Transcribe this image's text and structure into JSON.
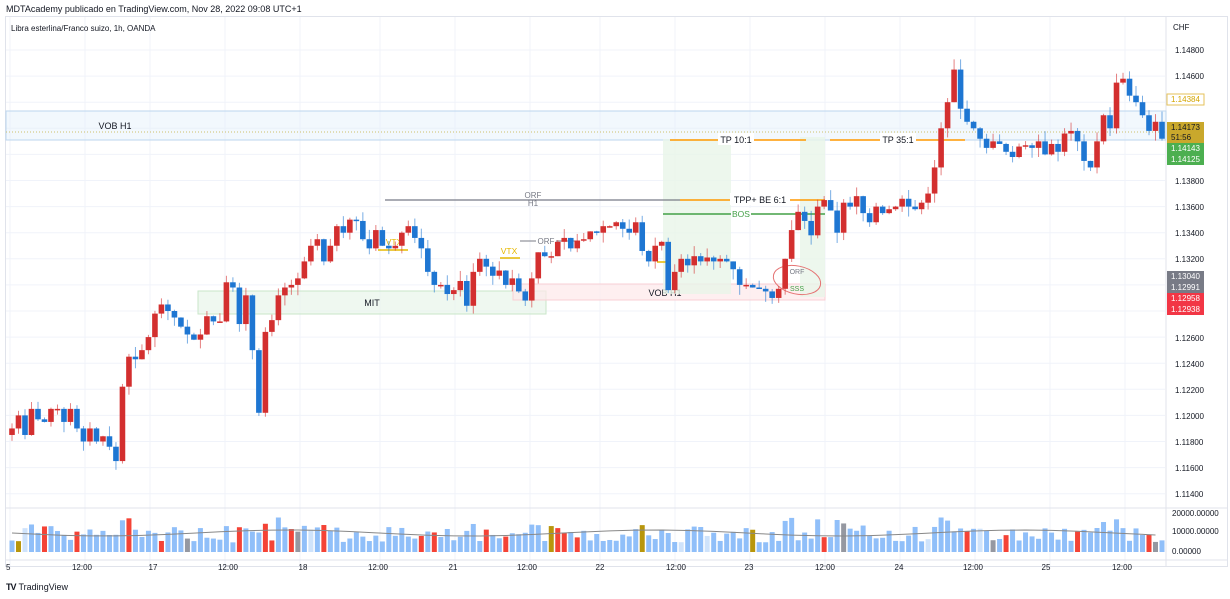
{
  "header": {
    "published": "MDTAcademy publicado en TradingView.com, Nov 28, 2022 09:08 UTC+1",
    "symbol": "Libra esterlina/Franco suizo, 1h, OANDA"
  },
  "brand": {
    "logo": "TV",
    "name": "TradingView"
  },
  "colors": {
    "up": "#d32f2f",
    "down": "#1e76d2",
    "vol_up": "#f44336",
    "vol_down": "#90bff9",
    "vol_light": "#cfe3fb",
    "vol_gold": "#b8960c",
    "vol_gray": "#9598a1",
    "orange": "#ff9800",
    "green": "#43a047",
    "gray": "#787b86",
    "gold": "#e6b800"
  },
  "price_axis": {
    "currency": "CHF",
    "ticks": [
      "1.14800",
      "1.14600",
      "1.13800",
      "1.13600",
      "1.13400",
      "1.13200",
      "1.12600",
      "1.12400",
      "1.12200",
      "1.12000",
      "1.11800",
      "1.11600",
      "1.11400"
    ],
    "tags": [
      {
        "label": "1.14384",
        "bg": "#ffffff",
        "fg": "#d4a500",
        "border": "#e6c25a"
      },
      {
        "label": "1.14173",
        "bg": "#c9a82c",
        "fg": "#131722"
      },
      {
        "label": "51:56",
        "bg": "#c9a82c",
        "fg": "#131722"
      },
      {
        "label": "1.14143",
        "bg": "#4caf50",
        "fg": "#ffffff"
      },
      {
        "label": "1.14125",
        "bg": "#4caf50",
        "fg": "#ffffff"
      },
      {
        "label": "1.13040",
        "bg": "#787b86",
        "fg": "#ffffff"
      },
      {
        "label": "1.12991",
        "bg": "#787b86",
        "fg": "#ffffff"
      },
      {
        "label": "1.12958",
        "bg": "#f23645",
        "fg": "#ffffff"
      },
      {
        "label": "1.12938",
        "bg": "#f23645",
        "fg": "#ffffff"
      }
    ]
  },
  "volume_axis": {
    "ticks": [
      "20000.00000",
      "10000.00000",
      "0.00000"
    ]
  },
  "time_axis": {
    "ticks": [
      "5",
      "12:00",
      "17",
      "12:00",
      "18",
      "12:00",
      "21",
      "12:00",
      "22",
      "12:00",
      "23",
      "12:00",
      "24",
      "12:00",
      "25",
      "12:00"
    ]
  },
  "annotations": {
    "vob_top": "VOB H1",
    "vob_bottom": "VOB H1",
    "mit": "MIT",
    "tp10": "TP 10:1",
    "tp35": "TP 35:1",
    "tpp": "TPP+ BE 6:1",
    "bos": "BOS",
    "orf_h1": "ORF",
    "orf_h1_sub": "H1",
    "orf2": "ORF",
    "orf3": "ORF",
    "vtx1": "VTX",
    "vtx2": "VTX",
    "vtx3": "VTX",
    "sss": "SSS"
  },
  "chart_data": {
    "type": "candlestick",
    "title": "Libra esterlina/Franco suizo, 1h, OANDA",
    "xlabel": "",
    "ylabel": "CHF",
    "ylim": [
      1.113,
      1.149
    ],
    "x_ticks": [
      "5",
      "12:00",
      "17",
      "12:00",
      "18",
      "12:00",
      "21",
      "12:00",
      "22",
      "12:00",
      "23",
      "12:00",
      "24",
      "12:00",
      "25",
      "12:00"
    ],
    "volume_ylim": [
      0,
      20000
    ],
    "closes": [
      1.119,
      1.12,
      1.1185,
      1.1205,
      1.1197,
      1.1195,
      1.1205,
      1.1205,
      1.1195,
      1.1205,
      1.119,
      1.118,
      1.119,
      1.118,
      1.1184,
      1.1176,
      1.1165,
      1.1222,
      1.1245,
      1.1243,
      1.125,
      1.126,
      1.1278,
      1.1285,
      1.128,
      1.1275,
      1.1268,
      1.1262,
      1.1258,
      1.1262,
      1.1276,
      1.1272,
      1.1272,
      1.1302,
      1.1298,
      1.127,
      1.1292,
      1.125,
      1.1202,
      1.1264,
      1.1273,
      1.1292,
      1.1298,
      1.13,
      1.1305,
      1.1318,
      1.133,
      1.1335,
      1.1318,
      1.133,
      1.1345,
      1.134,
      1.135,
      1.1349,
      1.1335,
      1.1328,
      1.1342,
      1.133,
      1.1328,
      1.133,
      1.134,
      1.1345,
      1.1336,
      1.1328,
      1.131,
      1.13,
      1.13,
      1.1293,
      1.1296,
      1.1303,
      1.1284,
      1.131,
      1.132,
      1.1314,
      1.1307,
      1.1311,
      1.13,
      1.1305,
      1.1295,
      1.1288,
      1.1305,
      1.1325,
      1.1322,
      1.1322,
      1.1333,
      1.1336,
      1.1328,
      1.1334,
      1.1335,
      1.1341,
      1.134,
      1.1345,
      1.1345,
      1.1348,
      1.1343,
      1.134,
      1.1348,
      1.1326,
      1.1318,
      1.133,
      1.1333,
      1.1296,
      1.131,
      1.132,
      1.1315,
      1.1322,
      1.1318,
      1.1321,
      1.1318,
      1.132,
      1.1318,
      1.1312,
      1.13,
      1.13,
      1.1298,
      1.1297,
      1.1295,
      1.129,
      1.1297,
      1.132,
      1.1342,
      1.1356,
      1.1349,
      1.1338,
      1.136,
      1.1365,
      1.1357,
      1.134,
      1.1363,
      1.136,
      1.1368,
      1.1355,
      1.1348,
      1.136,
      1.1355,
      1.1358,
      1.136,
      1.1366,
      1.136,
      1.1358,
      1.1363,
      1.137,
      1.139,
      1.142,
      1.144,
      1.1465,
      1.1435,
      1.1425,
      1.142,
      1.1412,
      1.1405,
      1.141,
      1.1408,
      1.1402,
      1.1398,
      1.1406,
      1.1407,
      1.1405,
      1.141,
      1.14,
      1.1408,
      1.1402,
      1.1416,
      1.1418,
      1.141,
      1.1395,
      1.139,
      1.141,
      1.143,
      1.142,
      1.1455,
      1.1458,
      1.1445,
      1.144,
      1.143,
      1.1418,
      1.1425,
      1.1412
    ]
  }
}
